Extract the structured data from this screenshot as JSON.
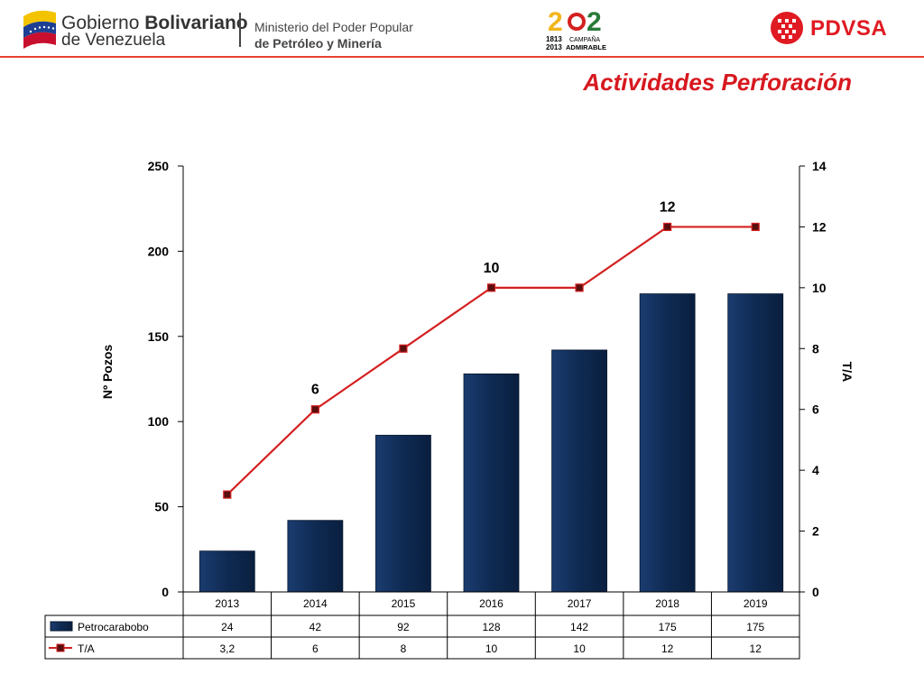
{
  "header": {
    "gov_line1_normal": "Gobierno ",
    "gov_line1_bold": "Bolivariano",
    "gov_line2": "de Venezuela",
    "ministry_line1": "Ministerio del Poder Popular",
    "ministry_line2": "de Petróleo y Minería",
    "campaign_years_top": "1813",
    "campaign_years_bottom": "2013",
    "campaign_word1": "CAMPAÑA",
    "campaign_word2": "ADMIRABLE",
    "pdvsa_label": "PDVSA"
  },
  "title": "Actividades Perforación",
  "colors": {
    "bar": "#0f2a52",
    "line": "#d42020",
    "marker": "#5a0f0f",
    "title": "#d71920",
    "brand_red": "#e01a22"
  },
  "chart_data": {
    "type": "bar",
    "categories": [
      "2013",
      "2014",
      "2015",
      "2016",
      "2017",
      "2018",
      "2019"
    ],
    "series": [
      {
        "name": "Petrocarabobo",
        "type": "bar",
        "axis": "left",
        "values": [
          24,
          42,
          92,
          128,
          142,
          175,
          175
        ],
        "labels": [
          "24",
          "42",
          "92",
          "128",
          "142",
          "175",
          "175"
        ]
      },
      {
        "name": "T/A",
        "type": "line",
        "axis": "right",
        "values": [
          3.2,
          6,
          8,
          10,
          10,
          12,
          12
        ],
        "labels": [
          "3,2",
          "6",
          "8",
          "10",
          "10",
          "12",
          "12"
        ]
      }
    ],
    "ylabel": "Nº Pozos",
    "y2label": "T/A",
    "ylim": [
      0,
      250
    ],
    "y2lim": [
      0,
      14
    ],
    "yticks": [
      0,
      50,
      100,
      150,
      200,
      250
    ],
    "y2ticks": [
      0,
      2,
      4,
      6,
      8,
      10,
      12,
      14
    ],
    "data_labels": [
      {
        "series": "T/A",
        "category": "2014",
        "text": "6"
      },
      {
        "series": "T/A",
        "category": "2016",
        "text": "10"
      },
      {
        "series": "T/A",
        "category": "2018",
        "text": "12"
      }
    ],
    "data_table": true,
    "grid": false
  }
}
